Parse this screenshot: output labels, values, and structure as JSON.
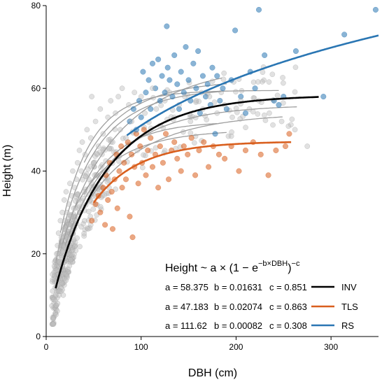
{
  "chart_data": {
    "type": "scatter",
    "xlabel": "DBH (cm)",
    "ylabel": "Height (m)",
    "xlim": [
      0,
      350
    ],
    "ylim": [
      0,
      80
    ],
    "xticks": [
      0,
      100,
      200,
      300
    ],
    "yticks": [
      0,
      20,
      40,
      60,
      80
    ],
    "grid": false,
    "legend_position": "bottom-right",
    "equation": {
      "prefix": "Height ~ a × (1 − e",
      "exponent": "−b×DBH",
      "suffix": ")",
      "power": "−c"
    },
    "colors": {
      "INV": "#000000",
      "TLS": "#d95f1e",
      "RS": "#2a76b3",
      "background_points": "#bdbdbd",
      "background_curves": "#9e9e9e"
    },
    "series": [
      {
        "name": "INV",
        "params_text": {
          "a": "a = 58.375",
          "b": "b = 0.01631",
          "c": "c = 0.851"
        },
        "a": 58.375,
        "b": 0.01631,
        "c": 0.851,
        "curve_x_range": [
          10,
          287
        ],
        "points": [
          [
            8,
            9
          ],
          [
            9,
            14
          ],
          [
            9,
            18
          ],
          [
            10,
            10
          ],
          [
            10,
            16
          ],
          [
            11,
            20
          ],
          [
            11,
            12
          ],
          [
            12,
            8
          ],
          [
            12,
            22
          ],
          [
            13,
            15
          ],
          [
            13,
            25
          ],
          [
            14,
            11
          ],
          [
            14,
            18
          ],
          [
            15,
            21
          ],
          [
            15,
            28
          ],
          [
            16,
            13
          ],
          [
            16,
            24
          ],
          [
            17,
            17
          ],
          [
            17,
            30
          ],
          [
            18,
            22
          ],
          [
            18,
            10
          ],
          [
            19,
            26
          ],
          [
            19,
            33
          ],
          [
            20,
            19
          ],
          [
            20,
            28
          ],
          [
            21,
            15
          ],
          [
            21,
            35
          ],
          [
            22,
            24
          ],
          [
            22,
            30
          ],
          [
            23,
            20
          ],
          [
            24,
            32
          ],
          [
            24,
            27
          ],
          [
            25,
            37
          ],
          [
            25,
            22
          ],
          [
            26,
            29
          ],
          [
            27,
            34
          ],
          [
            28,
            25
          ],
          [
            28,
            40
          ],
          [
            29,
            31
          ],
          [
            30,
            36
          ],
          [
            31,
            28
          ],
          [
            32,
            38
          ],
          [
            33,
            42
          ],
          [
            34,
            33
          ],
          [
            35,
            45
          ],
          [
            36,
            30
          ],
          [
            37,
            40
          ],
          [
            38,
            47
          ],
          [
            40,
            35
          ],
          [
            41,
            44
          ],
          [
            43,
            50
          ],
          [
            45,
            38
          ],
          [
            47,
            48
          ],
          [
            48,
            58
          ],
          [
            50,
            42
          ],
          [
            52,
            52
          ],
          [
            55,
            46
          ],
          [
            57,
            55
          ],
          [
            60,
            49
          ],
          [
            62,
            40
          ],
          [
            65,
            53
          ],
          [
            68,
            57
          ],
          [
            70,
            47
          ],
          [
            73,
            54
          ],
          [
            76,
            58
          ],
          [
            78,
            50
          ],
          [
            80,
            60
          ],
          [
            84,
            48
          ],
          [
            87,
            56
          ],
          [
            90,
            52
          ],
          [
            93,
            59
          ],
          [
            96,
            45
          ],
          [
            100,
            58
          ],
          [
            104,
            54
          ],
          [
            108,
            49
          ],
          [
            112,
            60
          ],
          [
            116,
            55
          ],
          [
            120,
            51
          ],
          [
            125,
            57
          ],
          [
            130,
            59
          ],
          [
            135,
            53
          ],
          [
            140,
            56
          ],
          [
            146,
            58
          ],
          [
            152,
            52
          ],
          [
            158,
            57
          ],
          [
            165,
            55
          ],
          [
            172,
            58
          ],
          [
            180,
            54
          ],
          [
            188,
            56
          ],
          [
            196,
            53
          ],
          [
            205,
            57
          ],
          [
            214,
            55
          ],
          [
            224,
            57
          ],
          [
            235,
            54
          ],
          [
            248,
            52
          ],
          [
            262,
            50
          ],
          [
            275,
            46
          ]
        ]
      },
      {
        "name": "TLS",
        "params_text": {
          "a": "a = 47.183",
          "b": "b = 0.02074",
          "c": "c = 0.863"
        },
        "a": 47.183,
        "b": 0.02074,
        "c": 0.863,
        "curve_x_range": [
          50,
          258
        ],
        "points": [
          [
            48,
            28
          ],
          [
            52,
            32
          ],
          [
            55,
            34
          ],
          [
            57,
            30
          ],
          [
            60,
            36
          ],
          [
            62,
            27
          ],
          [
            63,
            39
          ],
          [
            65,
            33
          ],
          [
            67,
            42
          ],
          [
            69,
            35
          ],
          [
            70,
            26
          ],
          [
            72,
            38
          ],
          [
            74,
            44
          ],
          [
            75,
            31
          ],
          [
            77,
            40
          ],
          [
            79,
            46
          ],
          [
            80,
            36
          ],
          [
            82,
            42
          ],
          [
            84,
            38
          ],
          [
            86,
            47
          ],
          [
            88,
            29
          ],
          [
            90,
            44
          ],
          [
            91,
            24
          ],
          [
            93,
            41
          ],
          [
            95,
            49
          ],
          [
            97,
            37
          ],
          [
            99,
            46
          ],
          [
            101,
            42
          ],
          [
            103,
            50
          ],
          [
            105,
            39
          ],
          [
            107,
            45
          ],
          [
            110,
            48
          ],
          [
            112,
            41
          ],
          [
            115,
            44
          ],
          [
            118,
            36
          ],
          [
            120,
            46
          ],
          [
            123,
            42
          ],
          [
            126,
            49
          ],
          [
            129,
            38
          ],
          [
            132,
            45
          ],
          [
            135,
            47
          ],
          [
            138,
            43
          ],
          [
            142,
            40
          ],
          [
            145,
            46
          ],
          [
            149,
            44
          ],
          [
            153,
            48
          ],
          [
            157,
            39
          ],
          [
            161,
            45
          ],
          [
            166,
            47
          ],
          [
            171,
            41
          ],
          [
            176,
            46
          ],
          [
            182,
            44
          ],
          [
            188,
            43
          ],
          [
            195,
            46
          ],
          [
            203,
            40
          ],
          [
            210,
            45
          ],
          [
            218,
            47
          ],
          [
            226,
            44
          ],
          [
            234,
            39
          ],
          [
            242,
            45
          ],
          [
            252,
            46
          ],
          [
            256,
            49
          ]
        ]
      },
      {
        "name": "RS",
        "params_text": {
          "a": "a = 111.62",
          "b": "b = 0.00082",
          "c": "c = 0.308"
        },
        "a": 111.62,
        "b": 0.00082,
        "c": 0.308,
        "curve_x_range": [
          85,
          350
        ],
        "points": [
          [
            88,
            52
          ],
          [
            92,
            55
          ],
          [
            95,
            50
          ],
          [
            98,
            57
          ],
          [
            100,
            53
          ],
          [
            102,
            64
          ],
          [
            105,
            59
          ],
          [
            108,
            62
          ],
          [
            110,
            55
          ],
          [
            112,
            66
          ],
          [
            115,
            60
          ],
          [
            118,
            67
          ],
          [
            120,
            57
          ],
          [
            122,
            63
          ],
          [
            125,
            59
          ],
          [
            127,
            75
          ],
          [
            128,
            65
          ],
          [
            130,
            62
          ],
          [
            133,
            58
          ],
          [
            135,
            68
          ],
          [
            138,
            61
          ],
          [
            140,
            55
          ],
          [
            142,
            64
          ],
          [
            145,
            59
          ],
          [
            147,
            70
          ],
          [
            150,
            62
          ],
          [
            152,
            57
          ],
          [
            155,
            66
          ],
          [
            158,
            60
          ],
          [
            160,
            69
          ],
          [
            162,
            54
          ],
          [
            165,
            63
          ],
          [
            168,
            58
          ],
          [
            170,
            61
          ],
          [
            173,
            56
          ],
          [
            175,
            65
          ],
          [
            178,
            49
          ],
          [
            180,
            63
          ],
          [
            183,
            57
          ],
          [
            186,
            60
          ],
          [
            190,
            55
          ],
          [
            195,
            62
          ],
          [
            199,
            74
          ],
          [
            205,
            58
          ],
          [
            210,
            54
          ],
          [
            215,
            64
          ],
          [
            220,
            60
          ],
          [
            224,
            79
          ],
          [
            230,
            68
          ],
          [
            240,
            57
          ],
          [
            245,
            56
          ],
          [
            250,
            58
          ],
          [
            263,
            69
          ],
          [
            292,
            58
          ],
          [
            314,
            73
          ],
          [
            347,
            79
          ]
        ]
      }
    ],
    "background_curves": [
      {
        "a": 60,
        "b": 0.022,
        "c": 0.75,
        "x_range": [
          10,
          185
        ]
      },
      {
        "a": 66,
        "b": 0.014,
        "c": 0.7,
        "x_range": [
          15,
          185
        ]
      },
      {
        "a": 59.5,
        "b": 0.03,
        "c": 0.85,
        "x_range": [
          15,
          245
        ]
      },
      {
        "a": 56,
        "b": 0.017,
        "c": 0.75,
        "x_range": [
          20,
          265
        ]
      },
      {
        "a": 54,
        "b": 0.015,
        "c": 0.7,
        "x_range": [
          25,
          250
        ]
      },
      {
        "a": 50,
        "b": 0.02,
        "c": 0.6,
        "x_range": [
          30,
          190
        ]
      },
      {
        "a": 62,
        "b": 0.02,
        "c": 0.65,
        "x_range": [
          40,
          190
        ]
      },
      {
        "a": 52,
        "b": 0.025,
        "c": 0.9,
        "x_range": [
          40,
          180
        ]
      }
    ]
  }
}
